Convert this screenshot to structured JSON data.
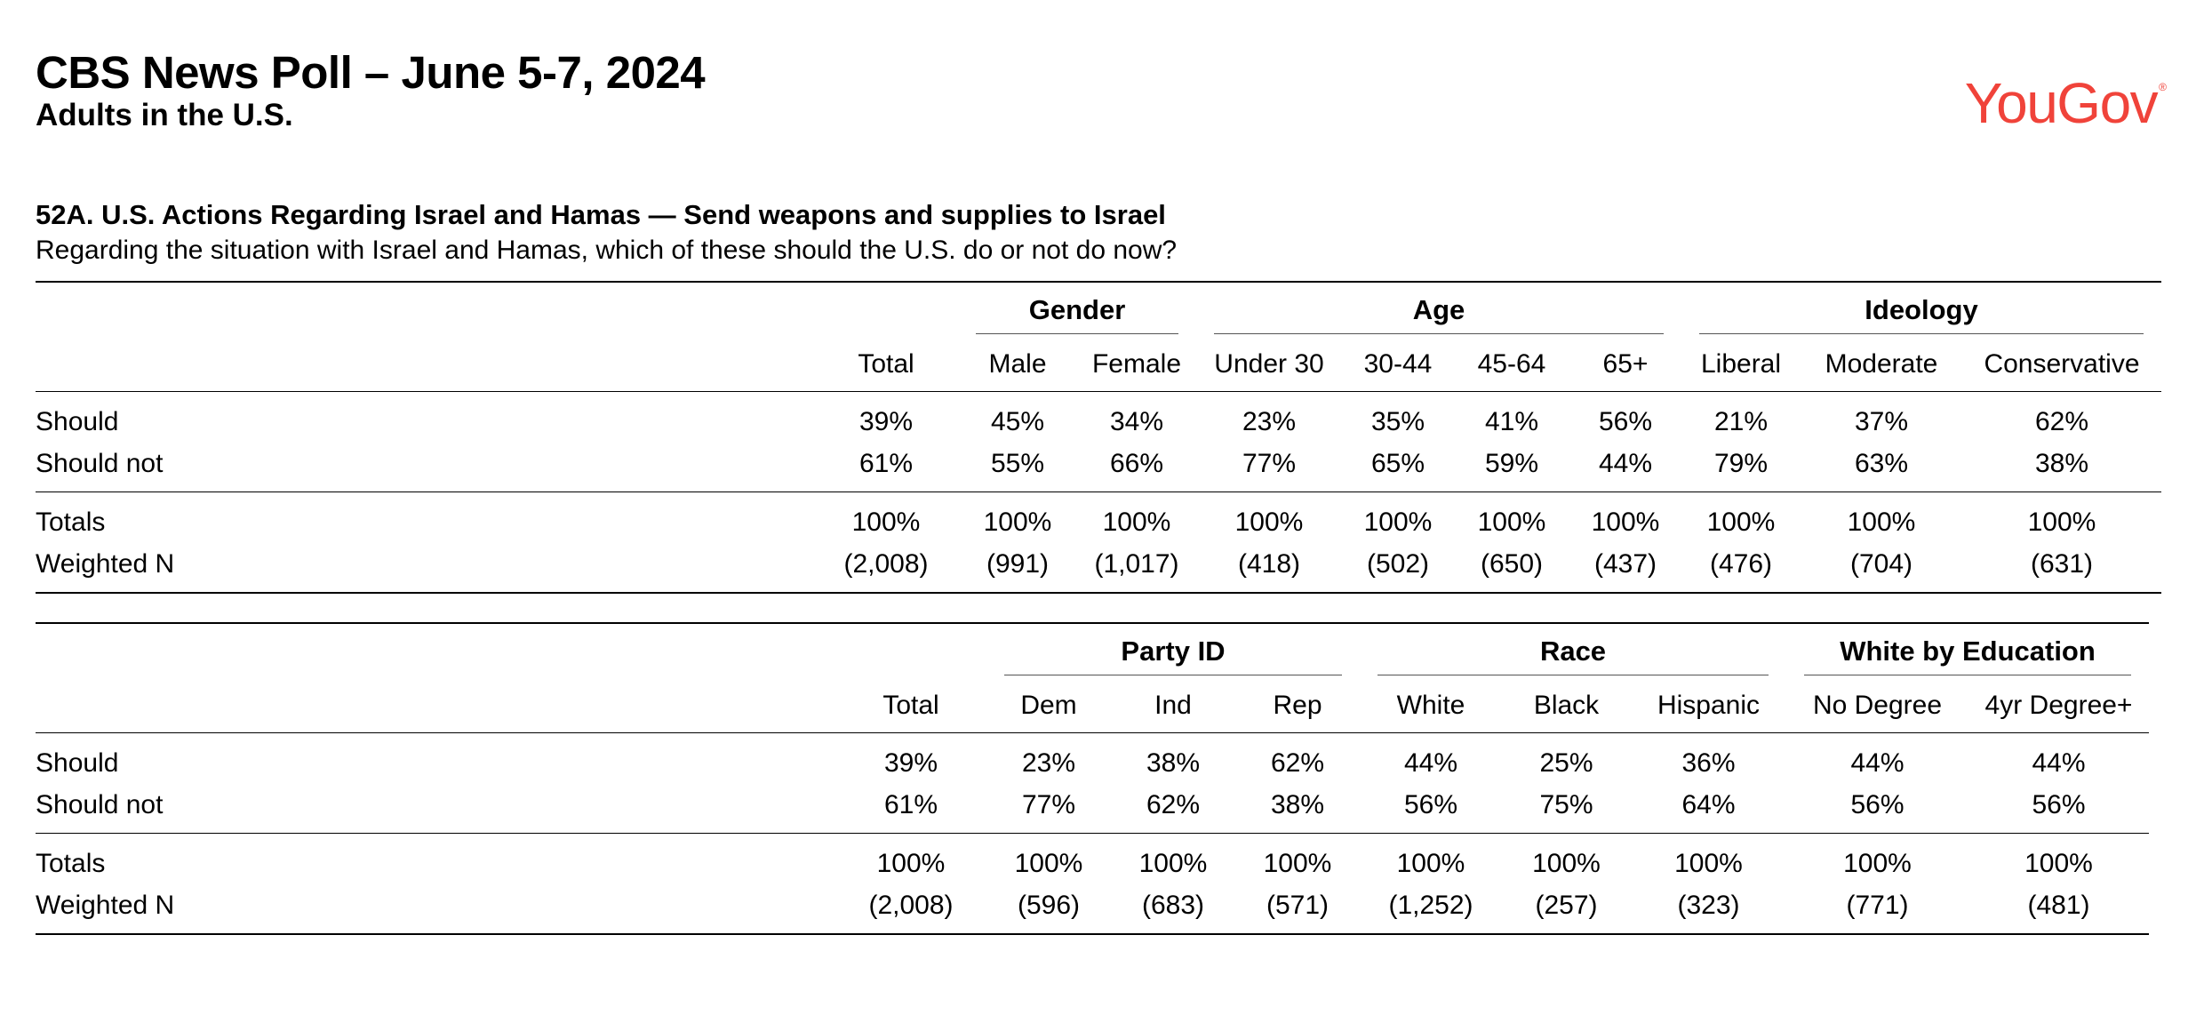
{
  "header": {
    "title": "CBS News Poll – June 5-7, 2024",
    "subtitle": "Adults in the U.S.",
    "logo_text": "YouGov",
    "logo_mark": "®",
    "logo_color": "#f0433a"
  },
  "question": {
    "title": "52A. U.S. Actions Regarding Israel and Hamas — Send weapons and supplies to Israel",
    "text": "Regarding the situation with Israel and Hamas, which of these should the U.S. do or not do now?"
  },
  "table1": {
    "groups": {
      "gender": "Gender",
      "age": "Age",
      "ideology": "Ideology"
    },
    "columns": [
      "Total",
      "Male",
      "Female",
      "Under 30",
      "30-44",
      "45-64",
      "65+",
      "Liberal",
      "Moderate",
      "Conservative"
    ],
    "rows": [
      {
        "label": "Should",
        "values": [
          "39%",
          "45%",
          "34%",
          "23%",
          "35%",
          "41%",
          "56%",
          "21%",
          "37%",
          "62%"
        ]
      },
      {
        "label": "Should not",
        "values": [
          "61%",
          "55%",
          "66%",
          "77%",
          "65%",
          "59%",
          "44%",
          "79%",
          "63%",
          "38%"
        ]
      }
    ],
    "totals": {
      "label": "Totals",
      "values": [
        "100%",
        "100%",
        "100%",
        "100%",
        "100%",
        "100%",
        "100%",
        "100%",
        "100%",
        "100%"
      ]
    },
    "weighted": {
      "label": "Weighted N",
      "values": [
        "(2,008)",
        "(991)",
        "(1,017)",
        "(418)",
        "(502)",
        "(650)",
        "(437)",
        "(476)",
        "(704)",
        "(631)"
      ]
    }
  },
  "table2": {
    "groups": {
      "party": "Party ID",
      "race": "Race",
      "white_edu": "White by Education"
    },
    "columns": [
      "Total",
      "Dem",
      "Ind",
      "Rep",
      "White",
      "Black",
      "Hispanic",
      "No Degree",
      "4yr Degree+"
    ],
    "rows": [
      {
        "label": "Should",
        "values": [
          "39%",
          "23%",
          "38%",
          "62%",
          "44%",
          "25%",
          "36%",
          "44%",
          "44%"
        ]
      },
      {
        "label": "Should not",
        "values": [
          "61%",
          "77%",
          "62%",
          "38%",
          "56%",
          "75%",
          "64%",
          "56%",
          "56%"
        ]
      }
    ],
    "totals": {
      "label": "Totals",
      "values": [
        "100%",
        "100%",
        "100%",
        "100%",
        "100%",
        "100%",
        "100%",
        "100%",
        "100%"
      ]
    },
    "weighted": {
      "label": "Weighted N",
      "values": [
        "(2,008)",
        "(596)",
        "(683)",
        "(571)",
        "(1,252)",
        "(257)",
        "(323)",
        "(771)",
        "(481)"
      ]
    }
  }
}
